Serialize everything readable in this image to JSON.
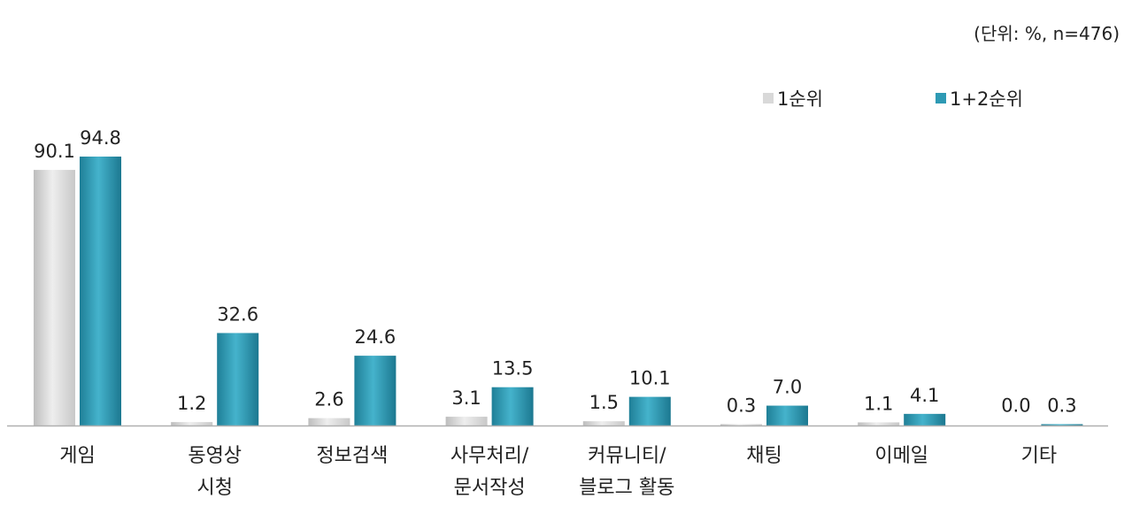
{
  "unit_note": "(단위: %, n=476)",
  "chart_data": {
    "type": "bar",
    "title": "",
    "xlabel": "",
    "ylabel": "",
    "ylim": [
      0,
      100
    ],
    "grid": false,
    "legend_position": "top-right",
    "categories": [
      [
        "게임"
      ],
      [
        "동영상",
        "시청"
      ],
      [
        "정보검색"
      ],
      [
        "사무처리/",
        "문서작성"
      ],
      [
        "커뮤니티/",
        "블로그 활동"
      ],
      [
        "채팅"
      ],
      [
        "이메일"
      ],
      [
        "기타"
      ]
    ],
    "series": [
      {
        "name": "1순위",
        "color": "#d9d9d9",
        "values": [
          90.1,
          1.2,
          2.6,
          3.1,
          1.5,
          0.3,
          1.1,
          0.0
        ]
      },
      {
        "name": "1+2순위",
        "color": "#2e9ab4",
        "values": [
          94.8,
          32.6,
          24.6,
          13.5,
          10.1,
          7.0,
          4.1,
          0.3
        ]
      }
    ],
    "value_labels": [
      [
        "90.1",
        "1.2",
        "2.6",
        "3.1",
        "1.5",
        "0.3",
        "1.1",
        "0.0"
      ],
      [
        "94.8",
        "32.6",
        "24.6",
        "13.5",
        "10.1",
        "7.0",
        "4.1",
        "0.3"
      ]
    ]
  }
}
